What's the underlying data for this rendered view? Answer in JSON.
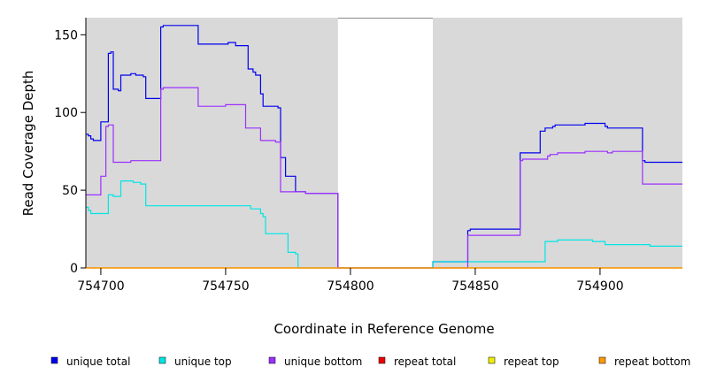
{
  "chart_data": {
    "type": "line",
    "xlabel": "Coordinate in Reference Genome",
    "ylabel": "Read Coverage Depth",
    "xlim": [
      754694,
      754933
    ],
    "ylim": [
      0,
      161
    ],
    "x_ticks": [
      754700,
      754750,
      754800,
      754850,
      754900
    ],
    "y_ticks": [
      0,
      50,
      100,
      150
    ],
    "background_color": "#d9d9d9",
    "gap_region": [
      754795,
      754833
    ],
    "legend_position": "bottom",
    "series": [
      {
        "name": "unique total",
        "color": "#0000ee",
        "points": [
          [
            754694,
            86
          ],
          [
            754695,
            85
          ],
          [
            754696,
            83
          ],
          [
            754697,
            82
          ],
          [
            754700,
            94
          ],
          [
            754703,
            138
          ],
          [
            754704,
            139
          ],
          [
            754705,
            115
          ],
          [
            754707,
            114
          ],
          [
            754708,
            124
          ],
          [
            754712,
            125
          ],
          [
            754714,
            124
          ],
          [
            754717,
            123
          ],
          [
            754718,
            109
          ],
          [
            754724,
            155
          ],
          [
            754725,
            156
          ],
          [
            754739,
            144
          ],
          [
            754751,
            145
          ],
          [
            754754,
            143
          ],
          [
            754759,
            128
          ],
          [
            754761,
            126
          ],
          [
            754762,
            124
          ],
          [
            754764,
            112
          ],
          [
            754765,
            104
          ],
          [
            754771,
            103
          ],
          [
            754772,
            71
          ],
          [
            754774,
            59
          ],
          [
            754778,
            49
          ],
          [
            754782,
            48
          ],
          [
            754795,
            0
          ],
          [
            754833,
            4
          ],
          [
            754847,
            24
          ],
          [
            754848,
            25
          ],
          [
            754868,
            74
          ],
          [
            754876,
            88
          ],
          [
            754878,
            90
          ],
          [
            754881,
            91
          ],
          [
            754882,
            92
          ],
          [
            754894,
            93
          ],
          [
            754902,
            91
          ],
          [
            754903,
            90
          ],
          [
            754917,
            69
          ],
          [
            754918,
            68
          ],
          [
            754933,
            68
          ]
        ]
      },
      {
        "name": "unique top",
        "color": "#00e5e5",
        "points": [
          [
            754694,
            39
          ],
          [
            754695,
            37
          ],
          [
            754696,
            35
          ],
          [
            754697,
            35
          ],
          [
            754703,
            47
          ],
          [
            754705,
            46
          ],
          [
            754708,
            56
          ],
          [
            754713,
            55
          ],
          [
            754716,
            54
          ],
          [
            754718,
            40
          ],
          [
            754760,
            38
          ],
          [
            754764,
            35
          ],
          [
            754765,
            33
          ],
          [
            754766,
            22
          ],
          [
            754775,
            10
          ],
          [
            754778,
            9
          ],
          [
            754779,
            0
          ],
          [
            754795,
            0
          ],
          [
            754833,
            4
          ],
          [
            754847,
            4
          ],
          [
            754878,
            17
          ],
          [
            754880,
            17
          ],
          [
            754883,
            18
          ],
          [
            754897,
            17
          ],
          [
            754902,
            15
          ],
          [
            754920,
            14
          ],
          [
            754933,
            14
          ]
        ]
      },
      {
        "name": "unique bottom",
        "color": "#9b30ff",
        "points": [
          [
            754694,
            47
          ],
          [
            754700,
            59
          ],
          [
            754702,
            91
          ],
          [
            754703,
            92
          ],
          [
            754705,
            68
          ],
          [
            754712,
            69
          ],
          [
            754724,
            115
          ],
          [
            754725,
            116
          ],
          [
            754739,
            104
          ],
          [
            754750,
            105
          ],
          [
            754758,
            90
          ],
          [
            754764,
            82
          ],
          [
            754770,
            81
          ],
          [
            754772,
            49
          ],
          [
            754778,
            49
          ],
          [
            754782,
            48
          ],
          [
            754795,
            0
          ],
          [
            754833,
            0
          ],
          [
            754847,
            21
          ],
          [
            754848,
            21
          ],
          [
            754868,
            69
          ],
          [
            754869,
            70
          ],
          [
            754879,
            72
          ],
          [
            754880,
            73
          ],
          [
            754883,
            74
          ],
          [
            754894,
            75
          ],
          [
            754903,
            74
          ],
          [
            754905,
            75
          ],
          [
            754917,
            54
          ],
          [
            754933,
            54
          ]
        ]
      },
      {
        "name": "repeat total",
        "color": "#ee0000",
        "points": [
          [
            754694,
            0
          ],
          [
            754933,
            0
          ]
        ]
      },
      {
        "name": "repeat top",
        "color": "#eeee00",
        "points": [
          [
            754694,
            0
          ],
          [
            754933,
            0
          ]
        ]
      },
      {
        "name": "repeat bottom",
        "color": "#ff9900",
        "points": [
          [
            754694,
            0
          ],
          [
            754933,
            0
          ]
        ]
      }
    ]
  }
}
